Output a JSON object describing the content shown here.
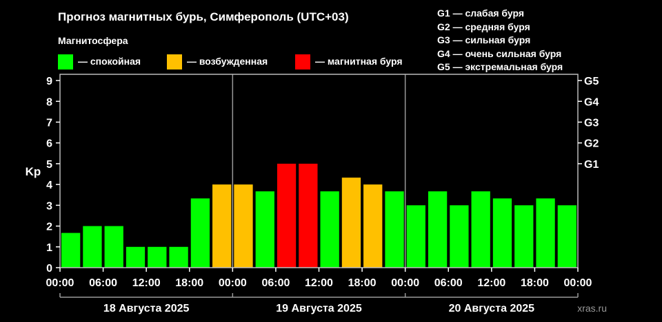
{
  "title": "Прогноз магнитных бурь, Симферополь (UTC+03)",
  "legend": {
    "caption": "Магнитосфера",
    "items": [
      {
        "label": "— спокойная",
        "color": "#00ff00"
      },
      {
        "label": "— возбужденная",
        "color": "#ffc000"
      },
      {
        "label": "— магнитная буря",
        "color": "#ff0000"
      }
    ]
  },
  "g_scale_legend": [
    "G1 — слабая буря",
    "G2 — средняя буря",
    "G3 — сильная буря",
    "G4 — очень сильная буря",
    "G5 — экстремальная буря"
  ],
  "watermark": "xras.ru",
  "chart_data": {
    "type": "bar",
    "ylabel": "Kp",
    "ylim": [
      0,
      9.3
    ],
    "y_ticks": [
      "0",
      "1",
      "2",
      "3",
      "4",
      "5",
      "6",
      "7",
      "8",
      "9"
    ],
    "right_ticks": [
      {
        "label": "G1",
        "value": 5
      },
      {
        "label": "G2",
        "value": 6
      },
      {
        "label": "G3",
        "value": 7
      },
      {
        "label": "G4",
        "value": 8
      },
      {
        "label": "G5",
        "value": 9
      }
    ],
    "x_tick_labels": [
      "00:00",
      "06:00",
      "12:00",
      "18:00",
      "00:00",
      "06:00",
      "12:00",
      "18:00",
      "00:00",
      "06:00",
      "12:00",
      "18:00",
      "00:00"
    ],
    "days": [
      "18 Августа 2025",
      "19 Августа 2025",
      "20 Августа 2025"
    ],
    "interval_hours": 3,
    "values": [
      1.67,
      2.0,
      2.0,
      1.0,
      1.0,
      1.0,
      3.33,
      4.0,
      4.0,
      3.67,
      5.0,
      5.0,
      3.67,
      4.33,
      4.0,
      3.67,
      3.0,
      3.67,
      3.0,
      3.67,
      3.33,
      3.0,
      3.33,
      3.0
    ],
    "categories": [
      "quiet",
      "quiet",
      "quiet",
      "quiet",
      "quiet",
      "quiet",
      "quiet",
      "active",
      "active",
      "quiet",
      "storm",
      "storm",
      "quiet",
      "active",
      "active",
      "quiet",
      "quiet",
      "quiet",
      "quiet",
      "quiet",
      "quiet",
      "quiet",
      "quiet",
      "quiet"
    ],
    "colors": {
      "quiet": "#00ff00",
      "active": "#ffc000",
      "storm": "#ff0000"
    },
    "grid": false
  }
}
